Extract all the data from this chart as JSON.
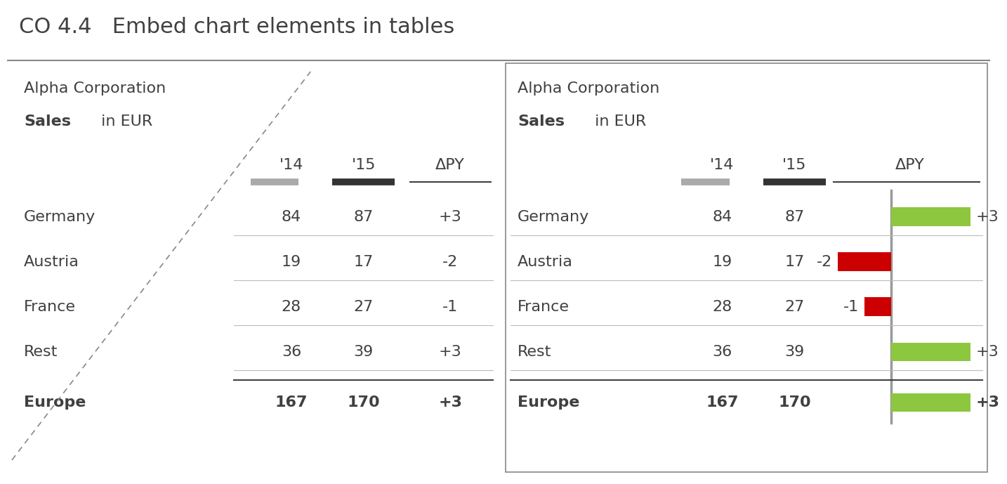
{
  "title": "CO 4.4   Embed chart elements in tables",
  "title_fontsize": 22,
  "body_fontsize": 16,
  "bg_color": "#ffffff",
  "text_color": "#404040",
  "panel1": {
    "subtitle_line1": "Alpha Corporation",
    "subtitle_bold": "Sales",
    "subtitle_rest": " in EUR",
    "rows": [
      {
        "label": "Germany",
        "v14": "84",
        "v15": "87",
        "delta": "+3"
      },
      {
        "label": "Austria",
        "v14": "19",
        "v15": "17",
        "delta": "-2"
      },
      {
        "label": "France",
        "v14": "28",
        "v15": "27",
        "delta": "-1"
      },
      {
        "label": "Rest",
        "v14": "36",
        "v15": "39",
        "delta": "+3"
      }
    ],
    "total_label": "Europe",
    "total_v14": "167",
    "total_v15": "170",
    "total_delta": "+3",
    "color_14": "#aaaaaa",
    "color_15": "#333333"
  },
  "panel2": {
    "subtitle_line1": "Alpha Corporation",
    "subtitle_bold": "Sales",
    "subtitle_rest": " in EUR",
    "rows": [
      {
        "label": "Germany",
        "v14": "84",
        "v15": "87",
        "delta": "+3",
        "bar_val": 3
      },
      {
        "label": "Austria",
        "v14": "19",
        "v15": "17",
        "delta": "-2",
        "bar_val": -2
      },
      {
        "label": "France",
        "v14": "28",
        "v15": "27",
        "delta": "-1",
        "bar_val": -1
      },
      {
        "label": "Rest",
        "v14": "36",
        "v15": "39",
        "delta": "+3",
        "bar_val": 3
      }
    ],
    "total_label": "Europe",
    "total_v14": "167",
    "total_v15": "170",
    "total_delta": "+3",
    "total_bar_val": 3,
    "color_14": "#aaaaaa",
    "color_15": "#333333",
    "color_pos": "#8dc63f",
    "color_neg": "#cc0000",
    "axis_line_color": "#999999"
  }
}
